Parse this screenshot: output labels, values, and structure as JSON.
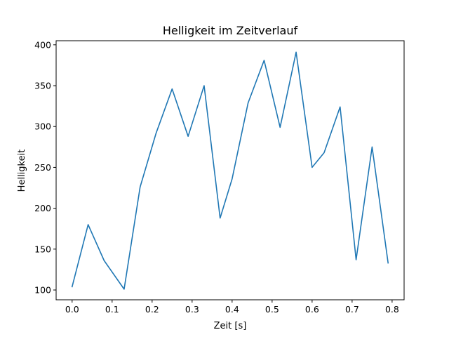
{
  "chart_data": {
    "type": "line",
    "title": "Helligkeit im Zeitverlauf",
    "xlabel": "Zeit [s]",
    "ylabel": "Helligkeit",
    "xlim": [
      -0.04,
      0.83
    ],
    "ylim": [
      88,
      405
    ],
    "xticks": [
      0.0,
      0.1,
      0.2,
      0.3,
      0.4,
      0.5,
      0.6,
      0.7,
      0.8
    ],
    "xtick_labels": [
      "0.0",
      "0.1",
      "0.2",
      "0.3",
      "0.4",
      "0.5",
      "0.6",
      "0.7",
      "0.8"
    ],
    "yticks": [
      100,
      150,
      200,
      250,
      300,
      350,
      400
    ],
    "ytick_labels": [
      "100",
      "150",
      "200",
      "250",
      "300",
      "350",
      "400"
    ],
    "grid": false,
    "series": [
      {
        "color": "#1f77b4",
        "x": [
          0.0,
          0.04,
          0.08,
          0.13,
          0.17,
          0.21,
          0.25,
          0.29,
          0.33,
          0.37,
          0.4,
          0.44,
          0.48,
          0.52,
          0.56,
          0.6,
          0.63,
          0.67,
          0.71,
          0.75,
          0.79
        ],
        "y": [
          104,
          180,
          136,
          101,
          226,
          292,
          346,
          288,
          350,
          188,
          236,
          329,
          381,
          299,
          391,
          250,
          268,
          324,
          137,
          275,
          133
        ]
      }
    ]
  }
}
